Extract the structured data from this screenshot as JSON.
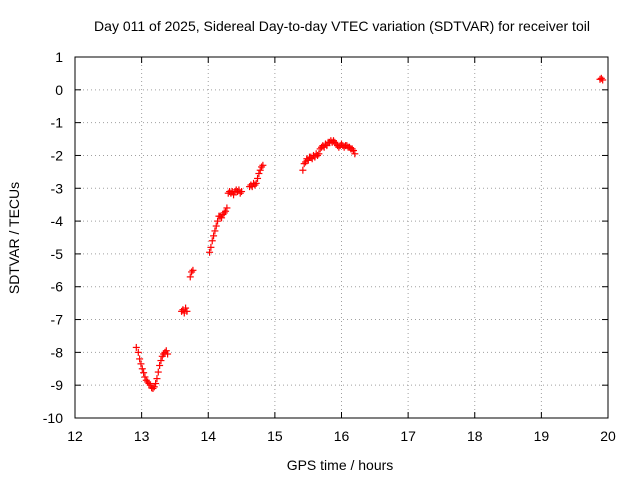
{
  "chart_data": {
    "type": "scatter",
    "title": "Day 011 of 2025, Sidereal Day-to-day VTEC variation (SDTVAR) for receiver toil",
    "xlabel": "GPS time / hours",
    "ylabel": "SDTVAR / TECUs",
    "xlim": [
      12,
      20
    ],
    "ylim": [
      -10,
      1
    ],
    "xticks": [
      "12",
      "13",
      "14",
      "15",
      "16",
      "17",
      "18",
      "19",
      "20"
    ],
    "yticks": [
      "1",
      "0",
      "-1",
      "-2",
      "-3",
      "-4",
      "-5",
      "-6",
      "-7",
      "-8",
      "-9",
      "-10"
    ],
    "grid": true,
    "marker": "+",
    "color": "#ff0000",
    "series": [
      {
        "name": "SDTVAR",
        "x": [
          12.92,
          12.95,
          12.97,
          12.99,
          13.01,
          13.03,
          13.05,
          13.07,
          13.09,
          13.11,
          13.13,
          13.15,
          13.17,
          13.19,
          13.21,
          13.23,
          13.25,
          13.27,
          13.29,
          13.31,
          13.33,
          13.35,
          13.37,
          13.39,
          13.6,
          13.62,
          13.64,
          13.66,
          13.68,
          13.73,
          13.75,
          13.77,
          14.02,
          14.04,
          14.06,
          14.08,
          14.1,
          14.12,
          14.14,
          14.16,
          14.18,
          14.2,
          14.22,
          14.24,
          14.26,
          14.28,
          14.3,
          14.32,
          14.34,
          14.36,
          14.38,
          14.4,
          14.42,
          14.44,
          14.46,
          14.48,
          14.5,
          14.62,
          14.64,
          14.66,
          14.68,
          14.7,
          14.72,
          14.74,
          14.76,
          14.78,
          14.8,
          14.82,
          15.42,
          15.44,
          15.46,
          15.48,
          15.5,
          15.52,
          15.54,
          15.56,
          15.58,
          15.6,
          15.62,
          15.64,
          15.66,
          15.68,
          15.7,
          15.72,
          15.74,
          15.76,
          15.78,
          15.8,
          15.82,
          15.84,
          15.86,
          15.88,
          15.9,
          15.92,
          15.94,
          15.96,
          15.98,
          16.0,
          16.02,
          16.04,
          16.06,
          16.08,
          16.1,
          16.12,
          16.14,
          16.16,
          16.18,
          16.2,
          19.88,
          19.9,
          19.92
        ],
        "y": [
          -7.85,
          -8.0,
          -8.2,
          -8.35,
          -8.5,
          -8.62,
          -8.75,
          -8.85,
          -8.9,
          -8.95,
          -9.0,
          -9.08,
          -9.1,
          -9.05,
          -8.95,
          -8.8,
          -8.6,
          -8.4,
          -8.25,
          -8.12,
          -8.05,
          -8.0,
          -7.95,
          -8.05,
          -6.75,
          -6.7,
          -6.8,
          -6.65,
          -6.75,
          -5.7,
          -5.55,
          -5.5,
          -4.95,
          -4.8,
          -4.6,
          -4.45,
          -4.3,
          -4.15,
          -4.0,
          -3.85,
          -3.85,
          -3.9,
          -3.8,
          -3.75,
          -3.7,
          -3.6,
          -3.15,
          -3.1,
          -3.15,
          -3.1,
          -3.2,
          -3.1,
          -3.05,
          -3.1,
          -3.05,
          -3.15,
          -3.1,
          -2.95,
          -2.9,
          -2.95,
          -2.85,
          -2.9,
          -2.85,
          -2.7,
          -2.55,
          -2.45,
          -2.35,
          -2.3,
          -2.45,
          -2.25,
          -2.2,
          -2.1,
          -2.15,
          -2.05,
          -2.05,
          -2.1,
          -2.0,
          -2.05,
          -1.95,
          -2.0,
          -1.95,
          -1.8,
          -1.75,
          -1.7,
          -1.75,
          -1.65,
          -1.7,
          -1.6,
          -1.6,
          -1.55,
          -1.6,
          -1.55,
          -1.6,
          -1.65,
          -1.7,
          -1.75,
          -1.7,
          -1.65,
          -1.7,
          -1.75,
          -1.7,
          -1.7,
          -1.75,
          -1.75,
          -1.8,
          -1.8,
          -1.85,
          -1.95,
          0.32,
          0.35,
          0.3
        ]
      }
    ]
  }
}
